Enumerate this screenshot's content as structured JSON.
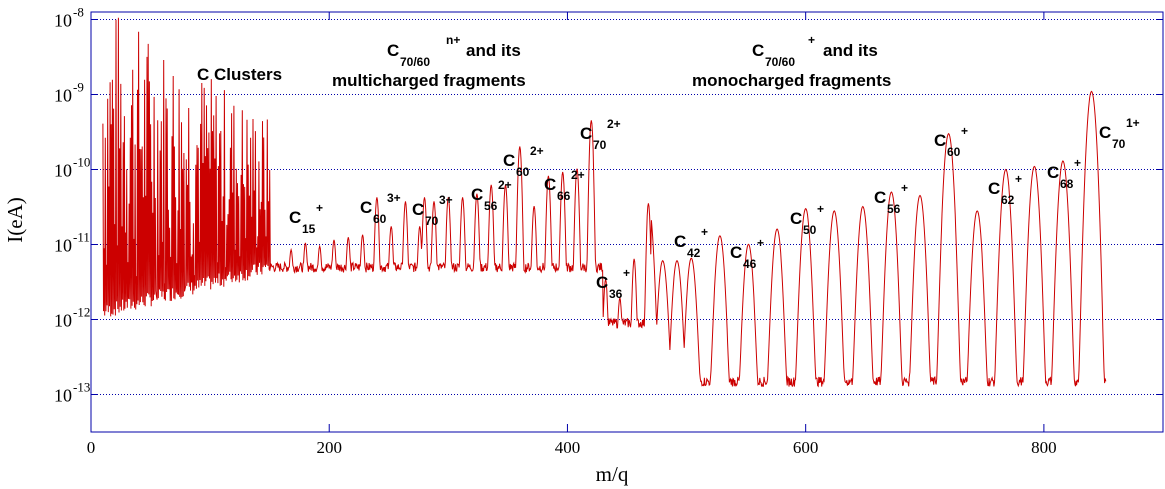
{
  "chart_data": {
    "type": "line",
    "title": "",
    "xlabel": "m/q",
    "ylabel": "I(eA)",
    "xlim": [
      0,
      900
    ],
    "ylim_exponent": [
      -13.5,
      -7.9
    ],
    "y_scale": "log",
    "grid": "horizontal dotted at decades",
    "x_ticks": [
      {
        "value": 0,
        "label": "0"
      },
      {
        "value": 200,
        "label": "200"
      },
      {
        "value": 400,
        "label": "400"
      },
      {
        "value": 600,
        "label": "600"
      },
      {
        "value": 800,
        "label": "800"
      }
    ],
    "y_ticks": [
      {
        "exp": -8,
        "base": "10",
        "sup": "-8"
      },
      {
        "exp": -9,
        "base": "10",
        "sup": "-9"
      },
      {
        "exp": -10,
        "base": "10",
        "sup": "-10"
      },
      {
        "exp": -11,
        "base": "10",
        "sup": "-11"
      },
      {
        "exp": -12,
        "base": "10",
        "sup": "-12"
      },
      {
        "exp": -13,
        "base": "10",
        "sup": "-13"
      }
    ],
    "series": [
      {
        "color": "#cc0000",
        "peaks": [
          {
            "x": 168,
            "i": 6e-12
          },
          {
            "x": 180,
            "i": 8e-12
          },
          {
            "x": 192,
            "i": 7e-12
          },
          {
            "x": 204,
            "i": 9e-12
          },
          {
            "x": 216,
            "i": 1e-11
          },
          {
            "x": 228,
            "i": 1.1e-11
          },
          {
            "x": 240,
            "i": 4e-11
          },
          {
            "x": 252,
            "i": 1.5e-11
          },
          {
            "x": 264,
            "i": 3.5e-11
          },
          {
            "x": 276,
            "i": 1.5e-11
          },
          {
            "x": 280,
            "i": 4e-11
          },
          {
            "x": 288,
            "i": 3.5e-11
          },
          {
            "x": 300,
            "i": 4e-11
          },
          {
            "x": 312,
            "i": 4e-11
          },
          {
            "x": 324,
            "i": 4.5e-11
          },
          {
            "x": 336,
            "i": 6e-11
          },
          {
            "x": 348,
            "i": 6e-11
          },
          {
            "x": 360,
            "i": 2e-10
          },
          {
            "x": 372,
            "i": 3e-11
          },
          {
            "x": 384,
            "i": 8e-11
          },
          {
            "x": 396,
            "i": 9e-11
          },
          {
            "x": 408,
            "i": 1e-10
          },
          {
            "x": 420,
            "i": 4.5e-10
          },
          {
            "x": 432,
            "i": 3e-12
          },
          {
            "x": 444,
            "i": 1.5e-12
          },
          {
            "x": 456,
            "i": 6e-12
          },
          {
            "x": 468,
            "i": 3.5e-11
          },
          {
            "x": 480,
            "i": 6e-12
          },
          {
            "x": 492,
            "i": 6e-12
          },
          {
            "x": 504,
            "i": 6.5e-12
          },
          {
            "x": 528,
            "i": 1.3e-11
          },
          {
            "x": 552,
            "i": 1e-11
          },
          {
            "x": 576,
            "i": 1.6e-11
          },
          {
            "x": 600,
            "i": 3e-11
          },
          {
            "x": 624,
            "i": 2.8e-11
          },
          {
            "x": 648,
            "i": 3.2e-11
          },
          {
            "x": 672,
            "i": 5e-11
          },
          {
            "x": 696,
            "i": 4.5e-11
          },
          {
            "x": 720,
            "i": 3e-10
          },
          {
            "x": 744,
            "i": 2.8e-11
          },
          {
            "x": 768,
            "i": 1e-10
          },
          {
            "x": 792,
            "i": 1.1e-10
          },
          {
            "x": 816,
            "i": 1.3e-10
          },
          {
            "x": 840,
            "i": 1.1e-09
          }
        ],
        "cluster_region": {
          "x_from": 10,
          "x_to": 150,
          "max_i": 2e-08
        }
      }
    ],
    "annotations": [
      {
        "id": "c-clusters",
        "text": "C Clusters"
      },
      {
        "id": "multi-line1-c",
        "text": "C",
        "sub": "70/60",
        "sup": "n+",
        "tail": " and its"
      },
      {
        "id": "multi-line2",
        "text": "multicharged fragments"
      },
      {
        "id": "mono-line1-c",
        "text": "C",
        "sub": "70/60",
        "sup": "+",
        "tail": " and its"
      },
      {
        "id": "mono-line2",
        "text": "monocharged fragments"
      }
    ],
    "peak_labels": [
      {
        "sub": "15",
        "sup": "+"
      },
      {
        "sub": "60",
        "sup": "3+"
      },
      {
        "sub": "70",
        "sup": "3+"
      },
      {
        "sub": "56",
        "sup": "2+"
      },
      {
        "sub": "60",
        "sup": "2+"
      },
      {
        "sub": "66",
        "sup": "2+"
      },
      {
        "sub": "70",
        "sup": "2+"
      },
      {
        "sub": "36",
        "sup": "+"
      },
      {
        "sub": "42",
        "sup": "+"
      },
      {
        "sub": "46",
        "sup": "+"
      },
      {
        "sub": "50",
        "sup": "+"
      },
      {
        "sub": "56",
        "sup": "+"
      },
      {
        "sub": "60",
        "sup": "+"
      },
      {
        "sub": "62",
        "sup": "+"
      },
      {
        "sub": "68",
        "sup": "+"
      },
      {
        "sub": "70",
        "sup": "1+"
      }
    ]
  }
}
